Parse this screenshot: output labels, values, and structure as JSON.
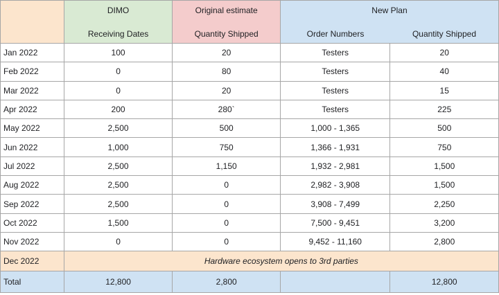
{
  "headers": {
    "dimo": {
      "top": "DIMO",
      "bottom": "Receiving Dates"
    },
    "original": {
      "top": "Original estimate",
      "bottom": "Quantity Shipped"
    },
    "new_plan": {
      "top": "New Plan",
      "order_label": "Order Numbers",
      "qty_label": "Quantity Shipped"
    }
  },
  "rows": [
    {
      "month": "Jan 2022",
      "dimo": "100",
      "original": "20",
      "orders": "Testers",
      "qty": "20"
    },
    {
      "month": "Feb 2022",
      "dimo": "0",
      "original": "80",
      "orders": "Testers",
      "qty": "40"
    },
    {
      "month": "Mar 2022",
      "dimo": "0",
      "original": "20",
      "orders": "Testers",
      "qty": "15"
    },
    {
      "month": "Apr 2022",
      "dimo": "200",
      "original": "280`",
      "orders": "Testers",
      "qty": "225"
    },
    {
      "month": "May 2022",
      "dimo": "2,500",
      "original": "500",
      "orders": "1,000 - 1,365",
      "qty": "500"
    },
    {
      "month": "Jun 2022",
      "dimo": "1,000",
      "original": "750",
      "orders": "1,366 - 1,931",
      "qty": "750"
    },
    {
      "month": "Jul 2022",
      "dimo": "2,500",
      "original": "1,150",
      "orders": "1,932 - 2,981",
      "qty": "1,500"
    },
    {
      "month": "Aug 2022",
      "dimo": "2,500",
      "original": "0",
      "orders": "2,982 - 3,908",
      "qty": "1,500"
    },
    {
      "month": "Sep 2022",
      "dimo": "2,500",
      "original": "0",
      "orders": "3,908 - 7,499",
      "qty": "2,250"
    },
    {
      "month": "Oct 2022",
      "dimo": "1,500",
      "original": "0",
      "orders": "7,500 - 9,451",
      "qty": "3,200"
    },
    {
      "month": "Nov 2022",
      "dimo": "0",
      "original": "0",
      "orders": "9,452 - 11,160",
      "qty": "2,800"
    }
  ],
  "december": {
    "month": "Dec 2022",
    "note": "Hardware ecosystem opens to 3rd parties"
  },
  "total": {
    "label": "Total",
    "dimo": "12,800",
    "original": "2,800",
    "orders": "",
    "qty": "12,800"
  },
  "colors": {
    "peach": "#fce5cd",
    "green": "#d9ead3",
    "pink": "#f4cccc",
    "blue": "#cfe2f3",
    "border": "#a6a6a6"
  }
}
